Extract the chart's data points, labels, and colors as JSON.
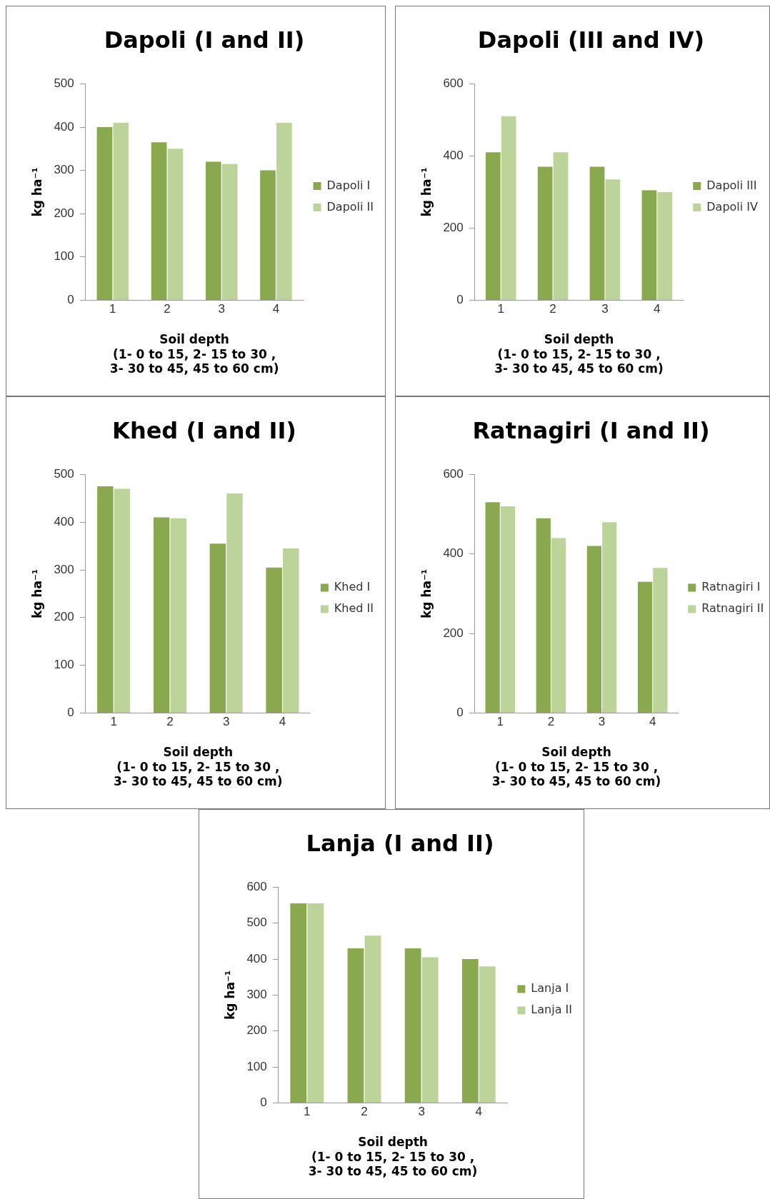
{
  "chart_data": [
    {
      "type": "bar",
      "title": "Dapoli (I and II)",
      "xlabel": "Soil depth\n(1- 0 to 15, 2- 15 to 30 ,\n3- 30 to 45, 45 to 60 cm)",
      "ylabel": "kg ha⁻¹",
      "categories": [
        "1",
        "2",
        "3",
        "4"
      ],
      "series": [
        {
          "name": "Dapoli I",
          "color": "#8aa84e",
          "values": [
            400,
            365,
            320,
            300
          ]
        },
        {
          "name": "Dapoli II",
          "color": "#bcd39a",
          "values": [
            410,
            350,
            315,
            410
          ]
        }
      ],
      "ylim": [
        0,
        500
      ],
      "yticks": [
        0,
        100,
        200,
        300,
        400,
        500
      ],
      "grid": false,
      "legend": "right"
    },
    {
      "type": "bar",
      "title": "Dapoli (III and IV)",
      "xlabel": "Soil depth\n(1- 0 to 15, 2- 15 to 30 ,\n3- 30 to 45, 45 to 60 cm)",
      "ylabel": "kg ha⁻¹",
      "categories": [
        "1",
        "2",
        "3",
        "4"
      ],
      "series": [
        {
          "name": "Dapoli III",
          "color": "#8aa84e",
          "values": [
            410,
            370,
            370,
            305
          ]
        },
        {
          "name": "Dapoli IV",
          "color": "#bcd39a",
          "values": [
            510,
            410,
            335,
            300
          ]
        }
      ],
      "ylim": [
        0,
        600
      ],
      "yticks": [
        0,
        200,
        400,
        600
      ],
      "grid": false,
      "legend": "right"
    },
    {
      "type": "bar",
      "title": "Khed (I and II)",
      "xlabel": "Soil depth\n(1- 0 to 15, 2- 15 to 30 ,\n3- 30 to 45, 45 to 60 cm)",
      "ylabel": "kg ha⁻¹",
      "categories": [
        "1",
        "2",
        "3",
        "4"
      ],
      "series": [
        {
          "name": "Khed I",
          "color": "#8aa84e",
          "values": [
            475,
            410,
            355,
            305
          ]
        },
        {
          "name": "Khed II",
          "color": "#bcd39a",
          "values": [
            470,
            408,
            460,
            345
          ]
        }
      ],
      "ylim": [
        0,
        500
      ],
      "yticks": [
        0,
        100,
        200,
        300,
        400,
        500
      ],
      "grid": false,
      "legend": "right"
    },
    {
      "type": "bar",
      "title": "Ratnagiri (I and II)",
      "xlabel": "Soil depth\n(1- 0 to 15, 2- 15 to 30 ,\n3- 30 to 45, 45 to 60 cm)",
      "ylabel": "kg ha⁻¹",
      "categories": [
        "1",
        "2",
        "3",
        "4"
      ],
      "series": [
        {
          "name": "Ratnagiri I",
          "color": "#8aa84e",
          "values": [
            530,
            490,
            420,
            330
          ]
        },
        {
          "name": "Ratnagiri II",
          "color": "#bcd39a",
          "values": [
            520,
            440,
            480,
            365
          ]
        }
      ],
      "ylim": [
        0,
        600
      ],
      "yticks": [
        0,
        200,
        400,
        600
      ],
      "grid": false,
      "legend": "right"
    },
    {
      "type": "bar",
      "title": "Lanja (I and II)",
      "xlabel": "Soil depth\n(1- 0 to 15, 2- 15 to 30 ,\n3- 30 to 45, 45 to 60 cm)",
      "ylabel": "kg ha⁻¹",
      "categories": [
        "1",
        "2",
        "3",
        "4"
      ],
      "series": [
        {
          "name": "Lanja I",
          "color": "#8aa84e",
          "values": [
            555,
            430,
            430,
            400
          ]
        },
        {
          "name": "Lanja II",
          "color": "#bcd39a",
          "values": [
            555,
            465,
            405,
            380
          ]
        }
      ],
      "ylim": [
        0,
        600
      ],
      "yticks": [
        0,
        100,
        200,
        300,
        400,
        500,
        600
      ],
      "grid": false,
      "legend": "right"
    }
  ]
}
